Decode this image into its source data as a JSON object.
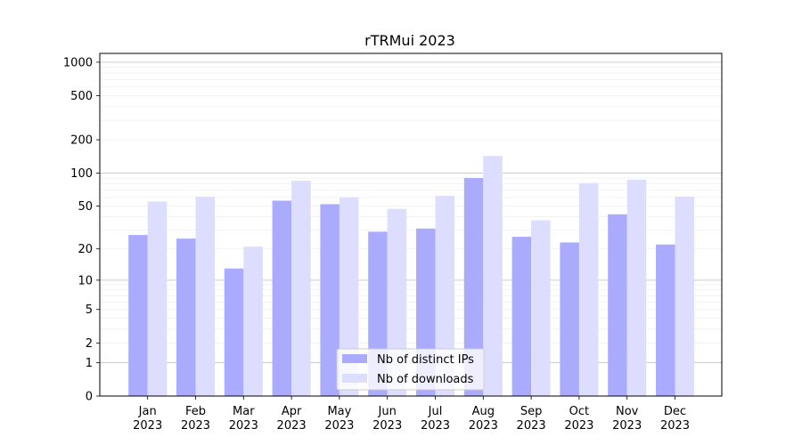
{
  "chart_data": {
    "type": "bar",
    "title": "rTRMui 2023",
    "xlabel": "",
    "ylabel": "",
    "categories": [
      [
        "Jan",
        "2023"
      ],
      [
        "Feb",
        "2023"
      ],
      [
        "Mar",
        "2023"
      ],
      [
        "Apr",
        "2023"
      ],
      [
        "May",
        "2023"
      ],
      [
        "Jun",
        "2023"
      ],
      [
        "Jul",
        "2023"
      ],
      [
        "Aug",
        "2023"
      ],
      [
        "Sep",
        "2023"
      ],
      [
        "Oct",
        "2023"
      ],
      [
        "Nov",
        "2023"
      ],
      [
        "Dec",
        "2023"
      ]
    ],
    "series": [
      {
        "name": "Nb of distinct IPs",
        "color": "#aaaaff",
        "values": [
          27,
          25,
          13,
          56,
          52,
          29,
          31,
          90,
          26,
          23,
          42,
          22
        ]
      },
      {
        "name": "Nb of downloads",
        "color": "#ddddff",
        "values": [
          55,
          61,
          21,
          85,
          60,
          47,
          62,
          143,
          37,
          81,
          87,
          61
        ]
      }
    ],
    "y_scale": "log(1+y)",
    "ylim": [
      0,
      1200
    ],
    "yticks": [
      0,
      1,
      2,
      5,
      10,
      20,
      50,
      100,
      200,
      500,
      1000
    ],
    "grid": true,
    "legend_position": "bottom-center"
  }
}
